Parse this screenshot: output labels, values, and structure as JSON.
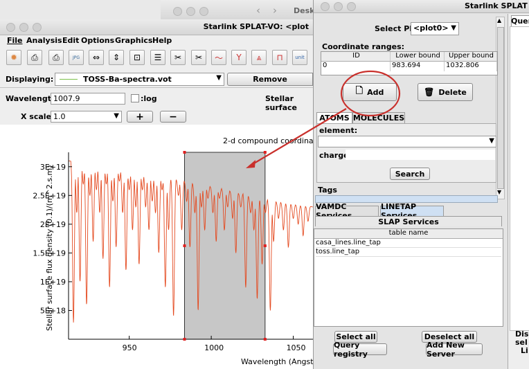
{
  "desktop_window": {
    "title": "Desk"
  },
  "main_window": {
    "title": "Starlink SPLAT-VO: <plot",
    "menus": [
      "File",
      "Analysis",
      "Edit",
      "Options",
      "Graphics",
      "Help"
    ],
    "displaying_label": "Displaying:",
    "spectrum_name": "TOSS-Ba-spectra.vot",
    "remove_label": "Remove",
    "wavelength_label": "Wavelength:",
    "wavelength_value": "1007.9",
    "log_label": ":log",
    "stellar_label": "Stellar surface",
    "xscale_label": "X scale:",
    "xscale_value": "1.0",
    "plus": "+",
    "minus": "−",
    "status_text": ""
  },
  "chart_data": {
    "type": "line",
    "title": "2-d compound coordina",
    "xlabel": "Wavelength (Angstrom)",
    "ylabel": "Stellar surface flux density (0.1)/(m^2.s.m)",
    "x_ticks": [
      "950",
      "1000",
      "1050"
    ],
    "y_ticks": [
      "5E+18",
      "1E+19",
      "1.5E+19",
      "2E+19",
      "2.5E+19",
      "3E+19"
    ],
    "xlim": [
      913,
      1062
    ],
    "ylim": [
      0,
      3.25e+19
    ],
    "continuum": [
      [
        913,
        3.1e+19
      ],
      [
        930,
        3.05e+19
      ],
      [
        950,
        2.95e+19
      ],
      [
        970,
        2.85e+19
      ],
      [
        990,
        2.72e+19
      ],
      [
        1010,
        2.6e+19
      ],
      [
        1030,
        2.45e+19
      ],
      [
        1050,
        2.35e+19
      ],
      [
        1062,
        2.3e+19
      ]
    ],
    "absorption_lines": [
      [
        916,
        2.9e+18
      ],
      [
        918,
        2.2e+19
      ],
      [
        920,
        1e+19
      ],
      [
        922,
        2.7e+19
      ],
      [
        924,
        6e+18
      ],
      [
        926,
        2.5e+19
      ],
      [
        928,
        1.7e+19
      ],
      [
        930,
        2.6e+19
      ],
      [
        932,
        2.2e+19
      ],
      [
        934,
        1.4e+19
      ],
      [
        936,
        2.7e+19
      ],
      [
        938,
        9e+18
      ],
      [
        940,
        2.4e+19
      ],
      [
        942,
        1.6e+19
      ],
      [
        944,
        2.75e+19
      ],
      [
        946,
        2.2e+19
      ],
      [
        948,
        1.2e+19
      ],
      [
        950,
        2.6e+19
      ],
      [
        952,
        1.9e+19
      ],
      [
        954,
        2.3e+19
      ],
      [
        956,
        1.3e+19
      ],
      [
        958,
        2.6e+19
      ],
      [
        960,
        2.3e+19
      ],
      [
        962,
        1.9e+19
      ],
      [
        964,
        2.4e+19
      ],
      [
        966,
        2.2e+19
      ],
      [
        968,
        1.5e+19
      ],
      [
        970,
        2.6e+19
      ],
      [
        972,
        9e+18
      ],
      [
        974,
        1.9e+19
      ],
      [
        977,
        4e+18
      ],
      [
        980,
        2.5e+19
      ],
      [
        982,
        1.9e+19
      ],
      [
        985,
        2.4e+19
      ],
      [
        987,
        1.6e+19
      ],
      [
        990,
        2.2e+19
      ],
      [
        992,
        5e+18
      ],
      [
        994,
        2.3e+19
      ],
      [
        996,
        1.9e+19
      ],
      [
        998,
        2.45e+19
      ],
      [
        1001,
        2.2e+19
      ],
      [
        1003,
        1.7e+19
      ],
      [
        1005,
        2.45e+19
      ],
      [
        1008,
        1.9e+19
      ],
      [
        1010,
        2.3e+19
      ],
      [
        1013,
        2.1e+19
      ],
      [
        1015,
        1.5e+19
      ],
      [
        1018,
        2.3e+19
      ],
      [
        1021,
        9e+18
      ],
      [
        1024,
        2.2e+19
      ],
      [
        1026,
        1.9e+19
      ],
      [
        1028,
        7e+18
      ],
      [
        1031,
        1.3e+19
      ],
      [
        1033,
        2.2e+19
      ],
      [
        1036,
        5e+18
      ],
      [
        1038,
        1.7e+19
      ],
      [
        1041,
        2.1e+19
      ],
      [
        1044,
        1.9e+19
      ],
      [
        1047,
        1.6e+19
      ],
      [
        1050,
        2.1e+19
      ],
      [
        1053,
        2e+19
      ],
      [
        1056,
        1.8e+19
      ],
      [
        1059,
        2.05e+19
      ]
    ],
    "selection_range": [
      983.694,
      1032.806
    ],
    "line_color": "#e4491f",
    "selection_color": "#c7c7c7"
  },
  "right_window": {
    "title": "Starlink SPLAT",
    "select_plot_label": "Select PLOT:",
    "plot_value": "<plot0>",
    "coordinate_ranges_label": "Coordinate ranges:",
    "columns": [
      "ID",
      "Lower bound",
      "Upper bound"
    ],
    "rows": [
      [
        "0",
        "983.694",
        "1032.806"
      ]
    ],
    "add_label": "Add",
    "delete_label": "Delete",
    "tabs": [
      "ATOMS",
      "MOLECULES"
    ],
    "element_label": "element:",
    "charge_label": "charge:",
    "search_label": "Search",
    "tags_label": "Tags",
    "service_tabs": [
      "VAMDC Services",
      "LINETAP Services"
    ],
    "slap_label": "SLAP Services",
    "table_header": "table name",
    "table_rows": [
      "casa_lines.line_tap",
      "toss.line_tap"
    ],
    "select_all": "Select all",
    "deselect_all": "Deselect all",
    "query_registry": "Query registry",
    "add_new_server": "Add New Server",
    "query_tab": "Quer",
    "side_text": [
      "Dis",
      "sel",
      "Li"
    ]
  }
}
